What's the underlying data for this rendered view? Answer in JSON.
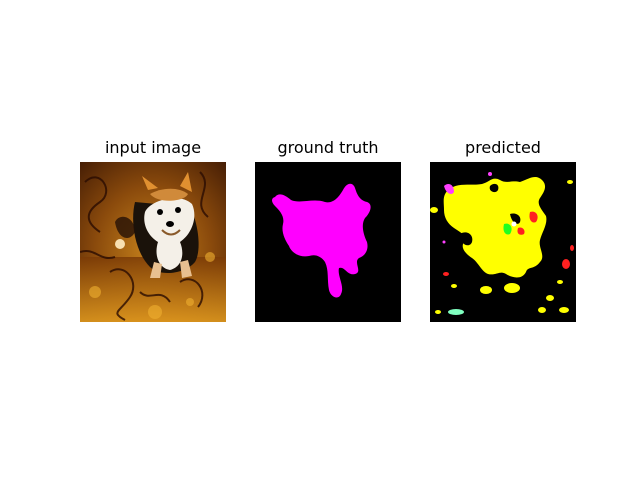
{
  "panels": [
    {
      "title": "input image"
    },
    {
      "title": "ground truth"
    },
    {
      "title": "predicted"
    }
  ],
  "colors": {
    "background": "#000000",
    "ground_truth_mask": "#ff00ff",
    "predicted_main": "#ffff00",
    "predicted_accent_red": "#ff2020",
    "predicted_accent_green": "#20ff20",
    "predicted_accent_cyan": "#80ffc0",
    "predicted_accent_magenta": "#ff40ff"
  }
}
